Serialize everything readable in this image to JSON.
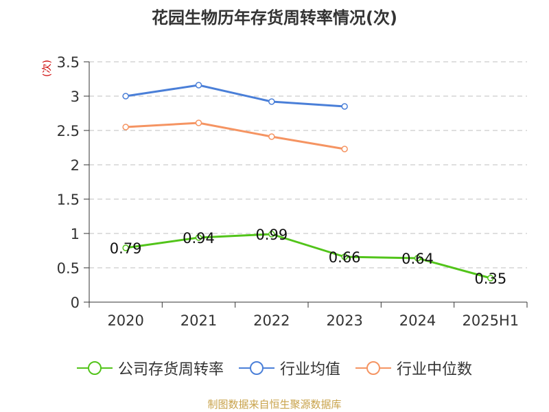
{
  "chart_data": {
    "type": "line",
    "title": "花园生物历年存货周转率情况(次)",
    "unit_label": "(次)",
    "categories": [
      "2020",
      "2021",
      "2022",
      "2023",
      "2024",
      "2025H1"
    ],
    "ylim": [
      0,
      3.5
    ],
    "yticks": [
      0,
      0.5,
      1,
      1.5,
      2,
      2.5,
      3,
      3.5
    ],
    "ytick_labels": [
      "0",
      "0.5",
      "1",
      "1.5",
      "2",
      "2.5",
      "3",
      "3.5"
    ],
    "grid": true,
    "legend_position": "bottom",
    "series": [
      {
        "name": "公司存货周转率",
        "color": "#52c41a",
        "values": [
          0.79,
          0.94,
          0.99,
          0.66,
          0.64,
          0.35
        ],
        "labels": [
          "0.79",
          "0.94",
          "0.99",
          "0.66",
          "0.64",
          "0.35"
        ]
      },
      {
        "name": "行业均值",
        "color": "#4a7fd8",
        "values": [
          3.0,
          3.16,
          2.92,
          2.85,
          null,
          null
        ]
      },
      {
        "name": "行业中位数",
        "color": "#f59462",
        "values": [
          2.55,
          2.61,
          2.41,
          2.23,
          null,
          null
        ]
      }
    ]
  },
  "source": "制图数据来自恒生聚源数据库"
}
